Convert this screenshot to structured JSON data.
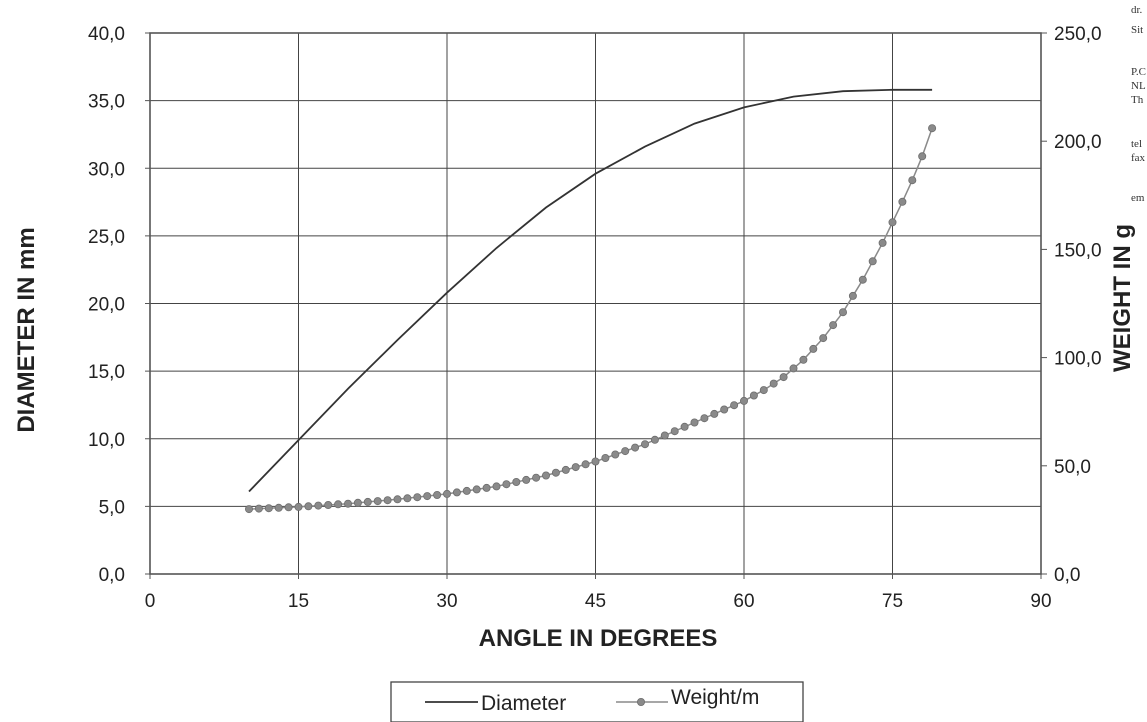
{
  "chart_data": {
    "type": "line",
    "xlabel": "ANGLE IN DEGREES",
    "ylabel": "DIAMETER IN mm",
    "y2label": "WEIGHT IN g",
    "xlim": [
      0,
      90
    ],
    "ylim": [
      0,
      40
    ],
    "y2lim": [
      0,
      250
    ],
    "xticks": [
      "0",
      "15",
      "30",
      "45",
      "60",
      "75",
      "90"
    ],
    "yticks": [
      "0,0",
      "5,0",
      "10,0",
      "15,0",
      "20,0",
      "25,0",
      "30,0",
      "35,0",
      "40,0"
    ],
    "y2ticks": [
      "0,0",
      "50,0",
      "100,0",
      "150,0",
      "200,0",
      "250,0"
    ],
    "grid": true,
    "legend_position": "bottom-center",
    "series": [
      {
        "name": "Diameter",
        "axis": "left",
        "marker": "none",
        "color": "#333333",
        "x": [
          10,
          15,
          20,
          25,
          30,
          35,
          40,
          45,
          50,
          55,
          60,
          65,
          70,
          75,
          79
        ],
        "values": [
          6.1,
          9.9,
          13.7,
          17.3,
          20.8,
          24.1,
          27.1,
          29.6,
          31.6,
          33.3,
          34.5,
          35.3,
          35.7,
          35.8,
          35.8
        ]
      },
      {
        "name": "Weight/m",
        "axis": "right",
        "marker": "circle",
        "color": "#8a8a8a",
        "x": [
          10,
          15,
          20,
          25,
          30,
          35,
          40,
          45,
          50,
          55,
          60,
          62,
          64,
          66,
          68,
          70,
          72,
          74,
          76,
          77,
          78,
          79
        ],
        "values": [
          30.0,
          31.0,
          32.5,
          34.5,
          37.0,
          40.5,
          45.5,
          52.0,
          60.0,
          70.0,
          80.0,
          85.0,
          91.0,
          99.0,
          109.0,
          121.0,
          136.0,
          153.0,
          172.0,
          182.0,
          193.0,
          206.0
        ]
      }
    ]
  },
  "margin_text": [
    "dr.",
    "Sit",
    "P.C",
    "NL",
    "Th",
    "tel",
    "fax",
    "em"
  ],
  "colors": {
    "axis": "#555555",
    "grid": "#444444",
    "diameter": "#333333",
    "weight": "#8a8a8a"
  }
}
